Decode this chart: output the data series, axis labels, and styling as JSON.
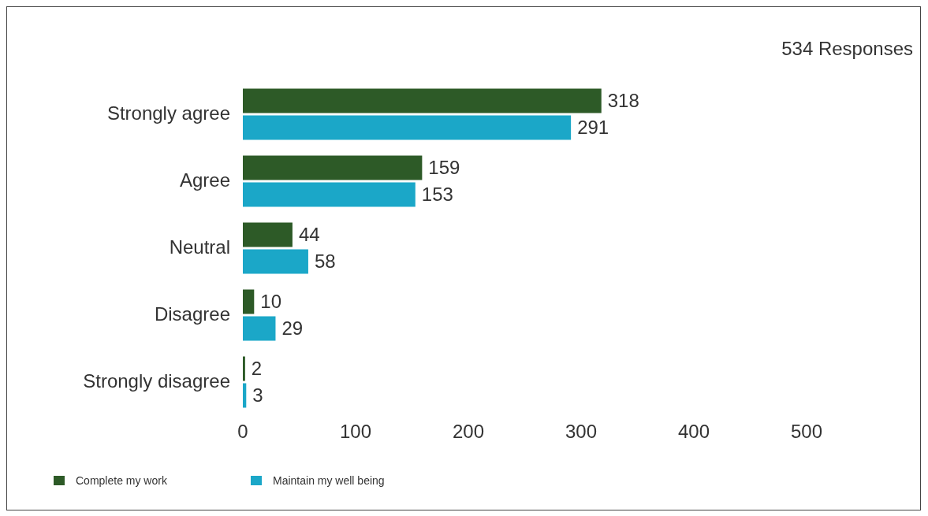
{
  "chart_data": {
    "type": "bar",
    "orientation": "horizontal",
    "categories": [
      "Strongly agree",
      "Agree",
      "Neutral",
      "Disagree",
      "Strongly disagree"
    ],
    "series": [
      {
        "name": "Complete my work",
        "color": "#2d5a27",
        "values": [
          318,
          159,
          44,
          10,
          2
        ]
      },
      {
        "name": "Maintain my well being",
        "color": "#1ba7c8",
        "values": [
          291,
          153,
          58,
          29,
          3
        ]
      }
    ],
    "xlim": [
      0,
      500
    ],
    "xticks": [
      0,
      100,
      200,
      300,
      400,
      500
    ],
    "data_labels": true,
    "grid": false,
    "legend": "bottom left",
    "annotations": [
      "534 Responses"
    ]
  }
}
